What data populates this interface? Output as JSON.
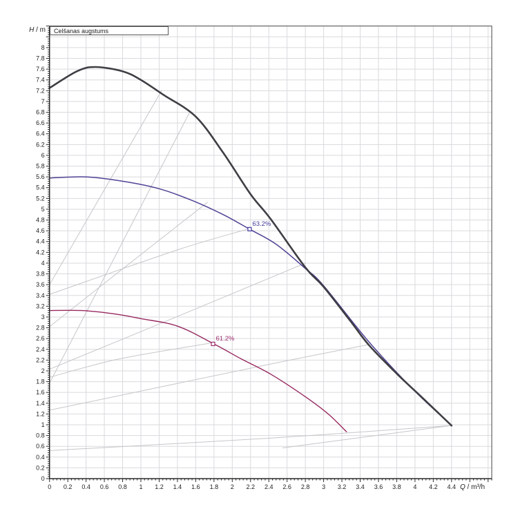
{
  "page": {
    "background": "#ffffff"
  },
  "title_box": {
    "text": "Celšanas augstums"
  },
  "y_axis": {
    "symbol": "H",
    "unit_suffix": " / m",
    "min": 0,
    "max": 8.4,
    "major_step": 0.2,
    "minor_step": 0.04,
    "tick_labels": [
      "0",
      "0.2",
      "0.4",
      "0.6",
      "0.8",
      "1",
      "1.2",
      "1.4",
      "1.6",
      "1.8",
      "2",
      "2.2",
      "2.4",
      "2.6",
      "2.8",
      "3",
      "3.2",
      "3.4",
      "3.6",
      "3.8",
      "4",
      "4.2",
      "4.4",
      "4.6",
      "4.8",
      "5",
      "5.2",
      "5.4",
      "5.6",
      "5.8",
      "6",
      "6.2",
      "6.4",
      "6.6",
      "6.8",
      "7",
      "7.2",
      "7.4",
      "7.6",
      "7.8",
      "8"
    ]
  },
  "x_axis": {
    "symbol": "Q",
    "unit_suffix": " / m³/h",
    "min": 0,
    "max": 4.84,
    "major_step": 0.2,
    "minor_step": 0.04,
    "tick_labels": [
      "0",
      "0.2",
      "0.4",
      "0.6",
      "0.8",
      "1",
      "1.2",
      "1.4",
      "1.6",
      "1.8",
      "2",
      "2.2",
      "2.4",
      "2.6",
      "2.8",
      "3",
      "3.2",
      "3.4",
      "3.6",
      "3.8",
      "4",
      "4.2",
      "4.4"
    ]
  },
  "colors": {
    "grid": "#dadade",
    "axis": "#2a2a2a",
    "tick_text": "#222222",
    "guide_gray": "#c6c6ca",
    "speed3": "#3e3e44",
    "speed2": "#4e4294",
    "speed1": "#97285f",
    "duty_label_blue": "#413a9b",
    "duty_label_magenta": "#9c2d6e"
  },
  "chart_data": {
    "type": "line",
    "title": "Celšanas augstums",
    "xlabel": "Q / m³/h",
    "ylabel": "H / m",
    "xlim": [
      0,
      4.84
    ],
    "ylim": [
      0,
      8.4
    ],
    "grid": true,
    "grid_step": 0.2,
    "legend": "none",
    "series": [
      {
        "name": "pump-curve-speed-3-max",
        "color": "#3e3e44",
        "width": 2.6,
        "points": [
          [
            0,
            7.25
          ],
          [
            0.3,
            7.56
          ],
          [
            0.5,
            7.64
          ],
          [
            0.8,
            7.56
          ],
          [
            1.0,
            7.4
          ],
          [
            1.25,
            7.12
          ],
          [
            1.6,
            6.72
          ],
          [
            1.9,
            6.05
          ],
          [
            2.2,
            5.28
          ],
          [
            2.42,
            4.82
          ],
          [
            2.8,
            3.92
          ],
          [
            3.0,
            3.56
          ],
          [
            3.3,
            2.91
          ],
          [
            3.5,
            2.47
          ],
          [
            3.8,
            1.95
          ],
          [
            4.1,
            1.47
          ],
          [
            4.4,
            0.985
          ]
        ]
      },
      {
        "name": "pump-curve-speed-2",
        "color": "#4e4294",
        "width": 1.5,
        "points": [
          [
            0,
            5.58
          ],
          [
            0.4,
            5.6
          ],
          [
            0.8,
            5.52
          ],
          [
            1.2,
            5.38
          ],
          [
            1.55,
            5.17
          ],
          [
            1.9,
            4.9
          ],
          [
            2.19,
            4.63
          ],
          [
            2.48,
            4.35
          ],
          [
            2.8,
            3.9
          ],
          [
            3.0,
            3.58
          ],
          [
            3.5,
            2.53
          ],
          [
            4.0,
            1.62
          ],
          [
            4.4,
            0.99
          ]
        ]
      },
      {
        "name": "pump-curve-speed-1",
        "color": "#97285f",
        "width": 1.4,
        "points": [
          [
            0,
            3.12
          ],
          [
            0.35,
            3.12
          ],
          [
            0.7,
            3.06
          ],
          [
            1.0,
            2.97
          ],
          [
            1.4,
            2.83
          ],
          [
            1.8,
            2.5
          ],
          [
            2.1,
            2.22
          ],
          [
            2.42,
            1.94
          ],
          [
            2.8,
            1.52
          ],
          [
            3.05,
            1.2
          ],
          [
            3.25,
            0.87
          ]
        ]
      }
    ],
    "guide_lines": [
      {
        "name": "guide-line-1",
        "points": [
          [
            0,
            3.6
          ],
          [
            0.62,
            5.42
          ],
          [
            1.23,
            7.21
          ]
        ]
      },
      {
        "name": "guide-line-2",
        "points": [
          [
            0,
            1.77
          ],
          [
            0.75,
            4.23
          ],
          [
            1.54,
            6.82
          ]
        ]
      },
      {
        "name": "guide-line-3",
        "points": [
          [
            0,
            2.82
          ],
          [
            0.82,
            3.92
          ],
          [
            1.73,
            5.13
          ]
        ]
      },
      {
        "name": "guide-line-4",
        "points": [
          [
            0,
            3.42
          ],
          [
            1.41,
            4.25
          ],
          [
            2.19,
            4.64
          ]
        ]
      },
      {
        "name": "guide-line-5",
        "points": [
          [
            0,
            2.03
          ],
          [
            1.4,
            3.01
          ],
          [
            2.8,
            4.0
          ]
        ]
      },
      {
        "name": "guide-line-6",
        "points": [
          [
            0,
            1.88
          ],
          [
            0.76,
            2.22
          ],
          [
            1.78,
            2.52
          ]
        ]
      },
      {
        "name": "guide-line-7",
        "points": [
          [
            0,
            1.27
          ],
          [
            2.4,
            2.12
          ],
          [
            3.5,
            2.49
          ]
        ]
      },
      {
        "name": "guide-line-8",
        "points": [
          [
            0,
            0.52
          ],
          [
            2.4,
            0.75
          ],
          [
            4.39,
            0.985
          ]
        ]
      },
      {
        "name": "guide-line-9",
        "points": [
          [
            2.55,
            0.57
          ],
          [
            4.39,
            0.985
          ]
        ]
      }
    ],
    "duty_points": [
      {
        "x": 2.19,
        "y": 4.63,
        "label": "63.2%",
        "color": "#413a9b"
      },
      {
        "x": 1.79,
        "y": 2.5,
        "label": "61.2%",
        "color": "#9c2d6e"
      }
    ]
  }
}
